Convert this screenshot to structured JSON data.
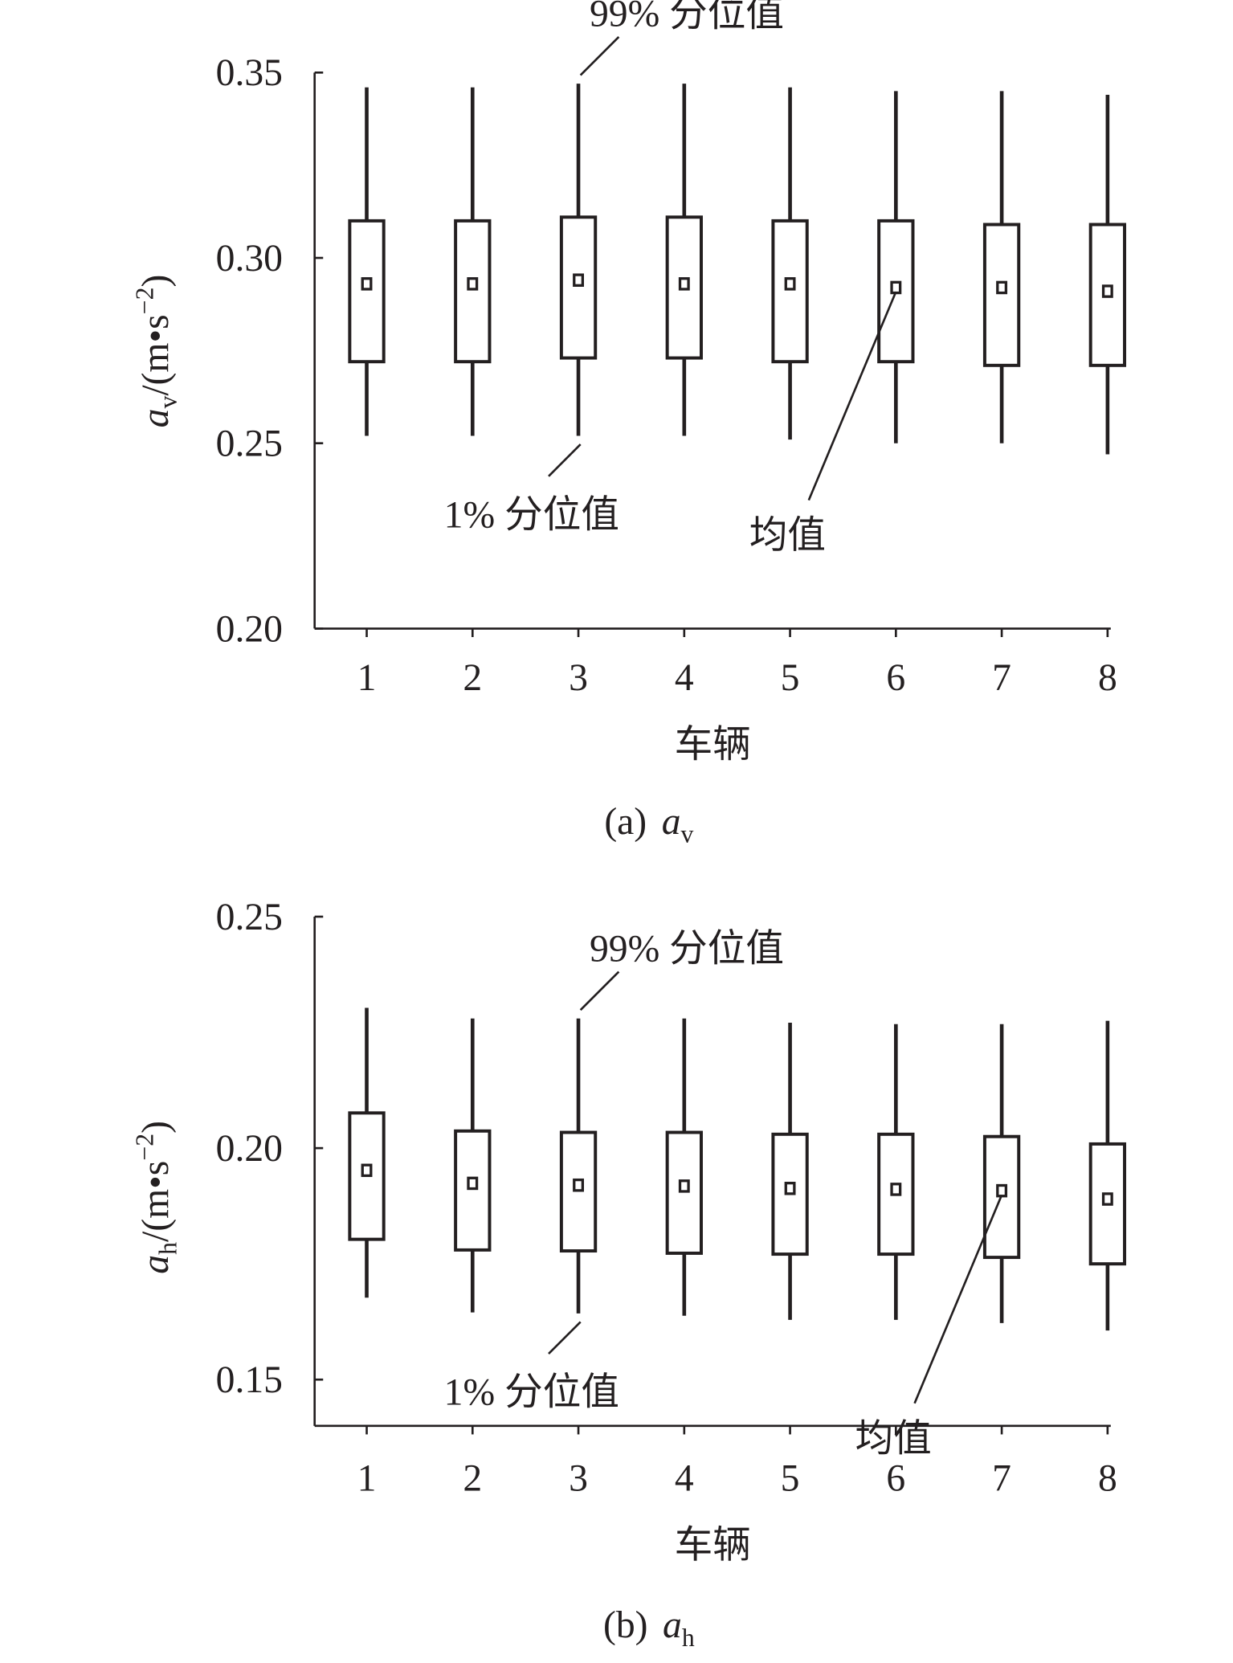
{
  "chart_data": [
    {
      "type": "box",
      "caption": "(a)",
      "caption_symbol": "a",
      "caption_sub": "v",
      "x_label": "车辆",
      "y_label": {
        "symbol": "a",
        "sub": "v",
        "unit": "/(m•s",
        "sup": "−2",
        "close": ")"
      },
      "annotations": {
        "high": "99% 分位值",
        "low": "1% 分位值",
        "mean": "均值"
      },
      "categories": [
        "1",
        "2",
        "3",
        "4",
        "5",
        "6",
        "7",
        "8"
      ],
      "low": [
        0.252,
        0.252,
        0.252,
        0.252,
        0.251,
        0.25,
        0.25,
        0.247
      ],
      "q1": [
        0.272,
        0.272,
        0.273,
        0.273,
        0.272,
        0.272,
        0.271,
        0.271
      ],
      "mean": [
        0.293,
        0.293,
        0.294,
        0.293,
        0.293,
        0.292,
        0.292,
        0.291
      ],
      "q3": [
        0.31,
        0.31,
        0.311,
        0.311,
        0.31,
        0.31,
        0.309,
        0.309
      ],
      "high": [
        0.346,
        0.346,
        0.347,
        0.347,
        0.346,
        0.345,
        0.345,
        0.344
      ],
      "color": "#231f20",
      "ylim": [
        0.2,
        0.35
      ],
      "yticks": [
        {
          "value": 0.2,
          "label": "0.20"
        },
        {
          "value": 0.25,
          "label": "0.25"
        },
        {
          "value": 0.3,
          "label": "0.30"
        },
        {
          "value": 0.35,
          "label": "0.35"
        }
      ]
    },
    {
      "type": "box",
      "caption": "(b)",
      "caption_symbol": "a",
      "caption_sub": "h",
      "x_label": "车辆",
      "y_label": {
        "symbol": "a",
        "sub": "h",
        "unit": "/(m•s",
        "sup": "−2",
        "close": ")"
      },
      "annotations": {
        "high": "99% 分位值",
        "low": "1% 分位值",
        "mean": "均值"
      },
      "categories": [
        "1",
        "2",
        "3",
        "4",
        "5",
        "6",
        "7",
        "8"
      ],
      "low": [
        0.1677,
        0.1645,
        0.1643,
        0.1638,
        0.1629,
        0.1629,
        0.1622,
        0.1606
      ],
      "q1": [
        0.1803,
        0.178,
        0.1778,
        0.1773,
        0.1771,
        0.1771,
        0.1764,
        0.175
      ],
      "mean": [
        0.1952,
        0.1924,
        0.192,
        0.1918,
        0.1913,
        0.1911,
        0.1908,
        0.189
      ],
      "q3": [
        0.2076,
        0.2037,
        0.2034,
        0.2034,
        0.203,
        0.203,
        0.2025,
        0.2009
      ],
      "high": [
        0.2303,
        0.228,
        0.228,
        0.228,
        0.2271,
        0.2268,
        0.2268,
        0.2275
      ],
      "color": "#231f20",
      "ylim": [
        0.14,
        0.25
      ],
      "yticks": [
        {
          "value": 0.15,
          "label": "0.15"
        },
        {
          "value": 0.2,
          "label": "0.20"
        },
        {
          "value": 0.25,
          "label": "0.25"
        }
      ]
    }
  ]
}
